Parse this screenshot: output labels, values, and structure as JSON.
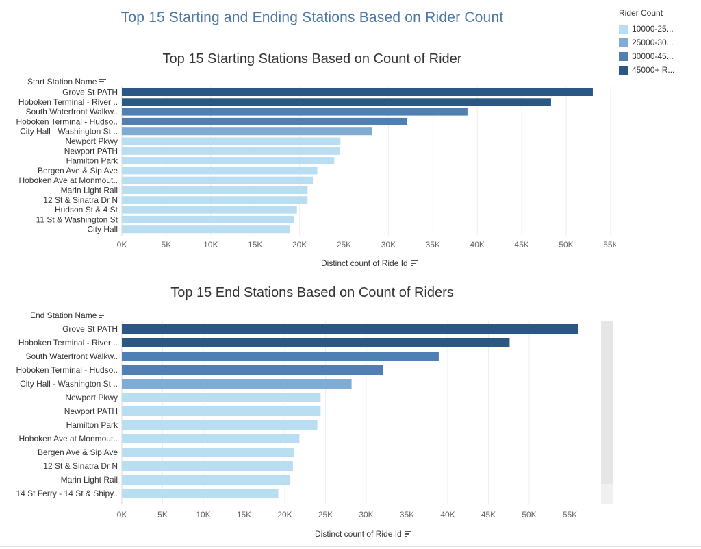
{
  "title": "Top 15 Starting and Ending Stations Based on Rider Count",
  "legend": {
    "title": "Rider Count",
    "items": [
      {
        "label": "10000-25...",
        "color": "#b9ddf1"
      },
      {
        "label": "25000-30...",
        "color": "#7eacd5"
      },
      {
        "label": "30000-45...",
        "color": "#4f7fb3"
      },
      {
        "label": "45000+ R...",
        "color": "#2a5783"
      }
    ]
  },
  "chart_data": [
    {
      "type": "bar",
      "orientation": "horizontal",
      "title": "Top 15 Starting Stations Based on Count of Rider",
      "ylabel": "Start Station Name",
      "xlabel": "Distinct count of Ride Id",
      "xlim": [
        0,
        55000
      ],
      "xticks": [
        "0K",
        "5K",
        "10K",
        "15K",
        "20K",
        "25K",
        "30K",
        "35K",
        "40K",
        "45K",
        "50K",
        "55K"
      ],
      "grid": true,
      "categories": [
        "Grove St PATH",
        "Hoboken Terminal - River ..",
        "South Waterfront Walkw..",
        "Hoboken Terminal - Hudso..",
        "City Hall - Washington St ..",
        "Newport Pkwy",
        "Newport PATH",
        "Hamilton Park",
        "Bergen Ave & Sip Ave",
        "Hoboken Ave at Monmout..",
        "Marin Light Rail",
        "12 St & Sinatra Dr N",
        "Hudson St & 4 St",
        "11 St & Washington St",
        "City Hall"
      ],
      "values": [
        53000,
        48300,
        38900,
        32100,
        28200,
        24600,
        24500,
        23900,
        22000,
        21500,
        20900,
        20900,
        19700,
        19400,
        18900
      ]
    },
    {
      "type": "bar",
      "orientation": "horizontal",
      "title": "Top 15 End Stations Based on Count of Riders",
      "ylabel": "End Station Name",
      "xlabel": "Distinct count of Ride Id",
      "xlim": [
        0,
        59000
      ],
      "xticks": [
        "0K",
        "5K",
        "10K",
        "15K",
        "20K",
        "25K",
        "30K",
        "35K",
        "40K",
        "45K",
        "50K",
        "55K"
      ],
      "grid": true,
      "categories": [
        "Grove St PATH",
        "Hoboken Terminal - River ..",
        "South Waterfront Walkw..",
        "Hoboken Terminal - Hudso..",
        "City Hall - Washington St ..",
        "Newport Pkwy",
        "Newport PATH",
        "Hamilton Park",
        "Hoboken Ave at Monmout..",
        "Bergen Ave & Sip Ave",
        "12 St & Sinatra Dr N",
        "Marin Light Rail",
        "14 St Ferry - 14 St & Shipy.."
      ],
      "values": [
        56000,
        47600,
        38900,
        32100,
        28200,
        24400,
        24400,
        24000,
        21800,
        21100,
        21000,
        20600,
        19200
      ]
    }
  ]
}
